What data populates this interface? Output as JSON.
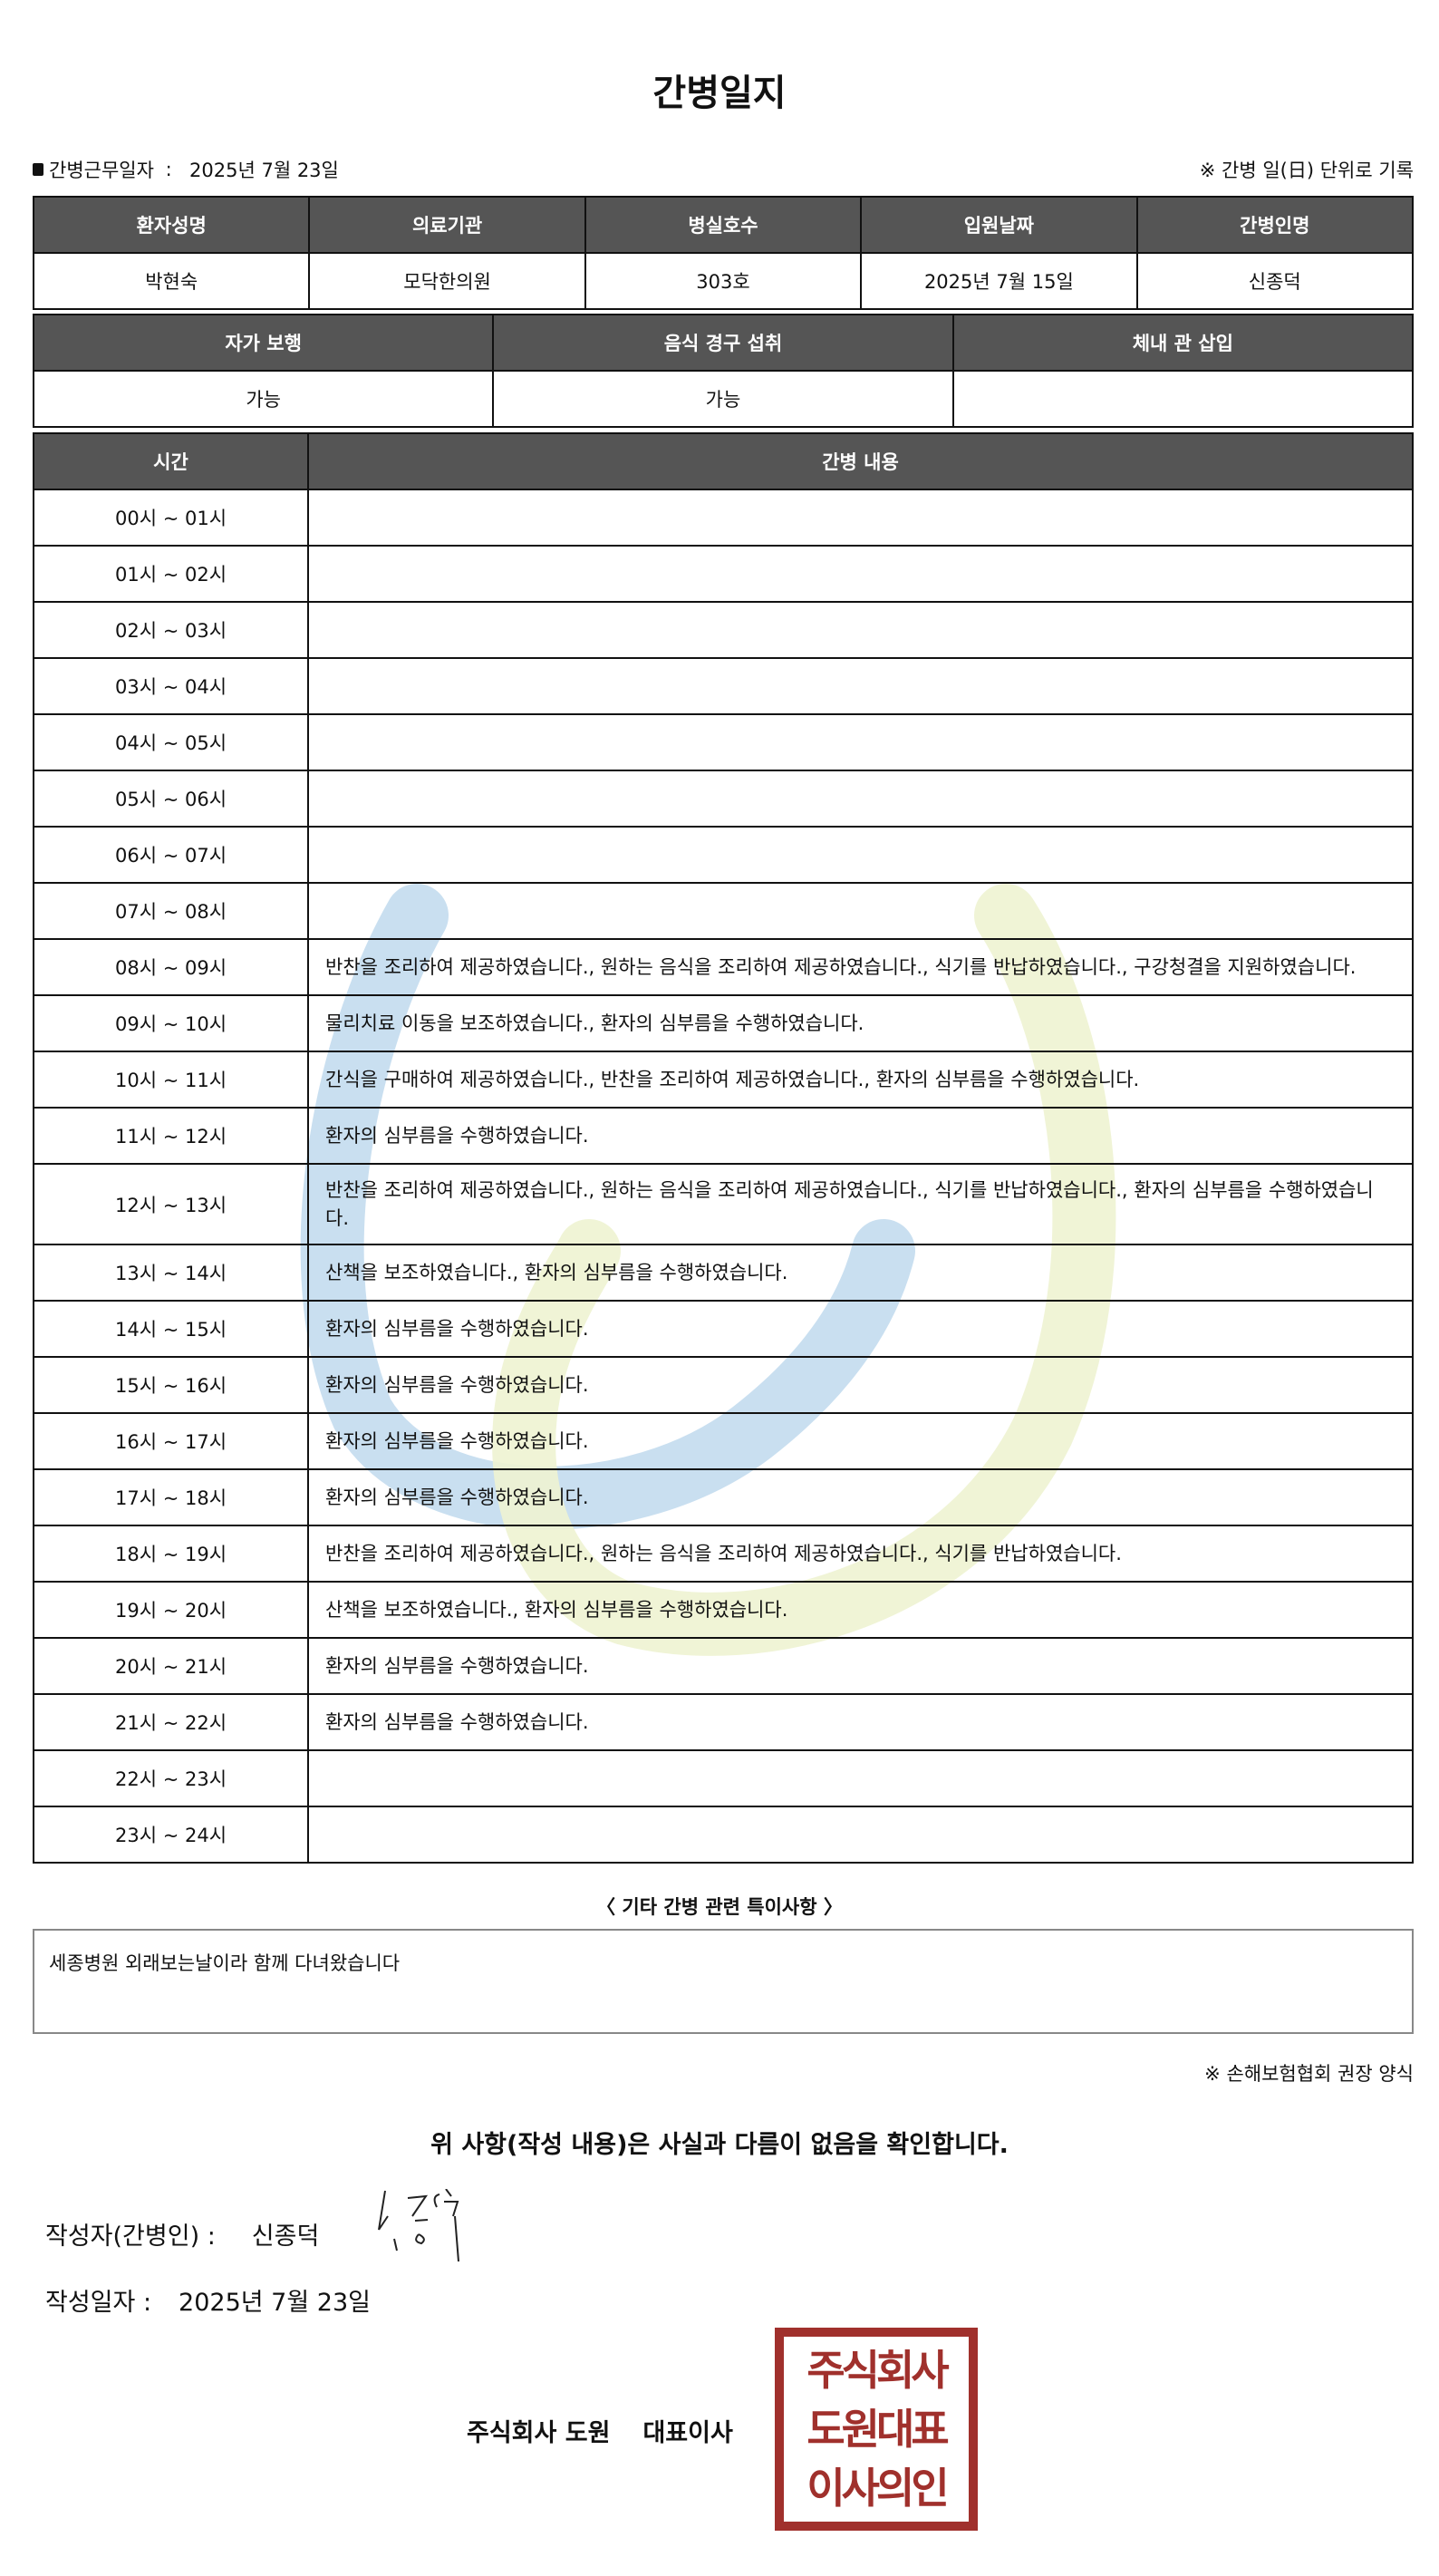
{
  "title": "간병일지",
  "work_date": {
    "label": "간병근무일자",
    "value": "2025년 7월 23일"
  },
  "note_right": "※ 간병 일(日) 단위로 기록",
  "info": {
    "headers": [
      "환자성명",
      "의료기관",
      "병실호수",
      "입원날짜",
      "간병인명"
    ],
    "values": [
      "박현숙",
      "모닥한의원",
      "303호",
      "2025년 7월 15일",
      "신종덕"
    ]
  },
  "status": {
    "headers": [
      "자가 보행",
      "음식 경구 섭취",
      "체내 관 삽입"
    ],
    "values": [
      "가능",
      "가능",
      ""
    ]
  },
  "log": {
    "headers": [
      "시간",
      "간병 내용"
    ],
    "rows": [
      {
        "time": "00시 ~ 01시",
        "content": ""
      },
      {
        "time": "01시 ~ 02시",
        "content": ""
      },
      {
        "time": "02시 ~ 03시",
        "content": ""
      },
      {
        "time": "03시 ~ 04시",
        "content": ""
      },
      {
        "time": "04시 ~ 05시",
        "content": ""
      },
      {
        "time": "05시 ~ 06시",
        "content": ""
      },
      {
        "time": "06시 ~ 07시",
        "content": ""
      },
      {
        "time": "07시 ~ 08시",
        "content": ""
      },
      {
        "time": "08시 ~ 09시",
        "content": "반찬을 조리하여 제공하였습니다., 원하는 음식을 조리하여 제공하였습니다., 식기를 반납하였습니다., 구강청결을 지원하였습니다."
      },
      {
        "time": "09시 ~ 10시",
        "content": "물리치료 이동을 보조하였습니다., 환자의 심부름을 수행하였습니다."
      },
      {
        "time": "10시 ~ 11시",
        "content": "간식을 구매하여 제공하였습니다., 반찬을 조리하여 제공하였습니다., 환자의 심부름을 수행하였습니다."
      },
      {
        "time": "11시 ~ 12시",
        "content": "환자의 심부름을 수행하였습니다."
      },
      {
        "time": "12시 ~ 13시",
        "content": "반찬을 조리하여 제공하였습니다., 원하는 음식을 조리하여 제공하였습니다., 식기를 반납하였습니다., 환자의 심부름을 수행하였습니다."
      },
      {
        "time": "13시 ~ 14시",
        "content": "산책을 보조하였습니다., 환자의 심부름을 수행하였습니다."
      },
      {
        "time": "14시 ~ 15시",
        "content": "환자의 심부름을 수행하였습니다."
      },
      {
        "time": "15시 ~ 16시",
        "content": "환자의 심부름을 수행하였습니다."
      },
      {
        "time": "16시 ~ 17시",
        "content": "환자의 심부름을 수행하였습니다."
      },
      {
        "time": "17시 ~ 18시",
        "content": "환자의 심부름을 수행하였습니다."
      },
      {
        "time": "18시 ~ 19시",
        "content": "반찬을 조리하여 제공하였습니다., 원하는 음식을 조리하여 제공하였습니다., 식기를 반납하였습니다."
      },
      {
        "time": "19시 ~ 20시",
        "content": "산책을 보조하였습니다., 환자의 심부름을 수행하였습니다."
      },
      {
        "time": "20시 ~ 21시",
        "content": "환자의 심부름을 수행하였습니다."
      },
      {
        "time": "21시 ~ 22시",
        "content": "환자의 심부름을 수행하였습니다."
      },
      {
        "time": "22시 ~ 23시",
        "content": ""
      },
      {
        "time": "23시 ~ 24시",
        "content": ""
      }
    ]
  },
  "special": {
    "title": "〈 기타 간병 관련 특이사항 〉",
    "text": "세종병원 외래보는날이라 함께 다녀왔습니다"
  },
  "source_note": "※ 손해보험협회 권장 양식",
  "confirm": "위 사항(작성 내용)은 사실과 다름이 없음을 확인합니다.",
  "writer": {
    "label": "작성자(간병인) :",
    "value": "신종덕"
  },
  "written_date": {
    "label": "작성일자 :",
    "value": "2025년 7월 23일"
  },
  "company": {
    "name": "주식회사 도원",
    "title": "대표이사"
  },
  "stamp": {
    "rows": [
      "주식회사",
      "도원대표",
      "이사의인"
    ],
    "color": "#a0302c"
  },
  "watermark": {
    "colors": [
      "#c9dff0",
      "#eef3d2"
    ]
  }
}
